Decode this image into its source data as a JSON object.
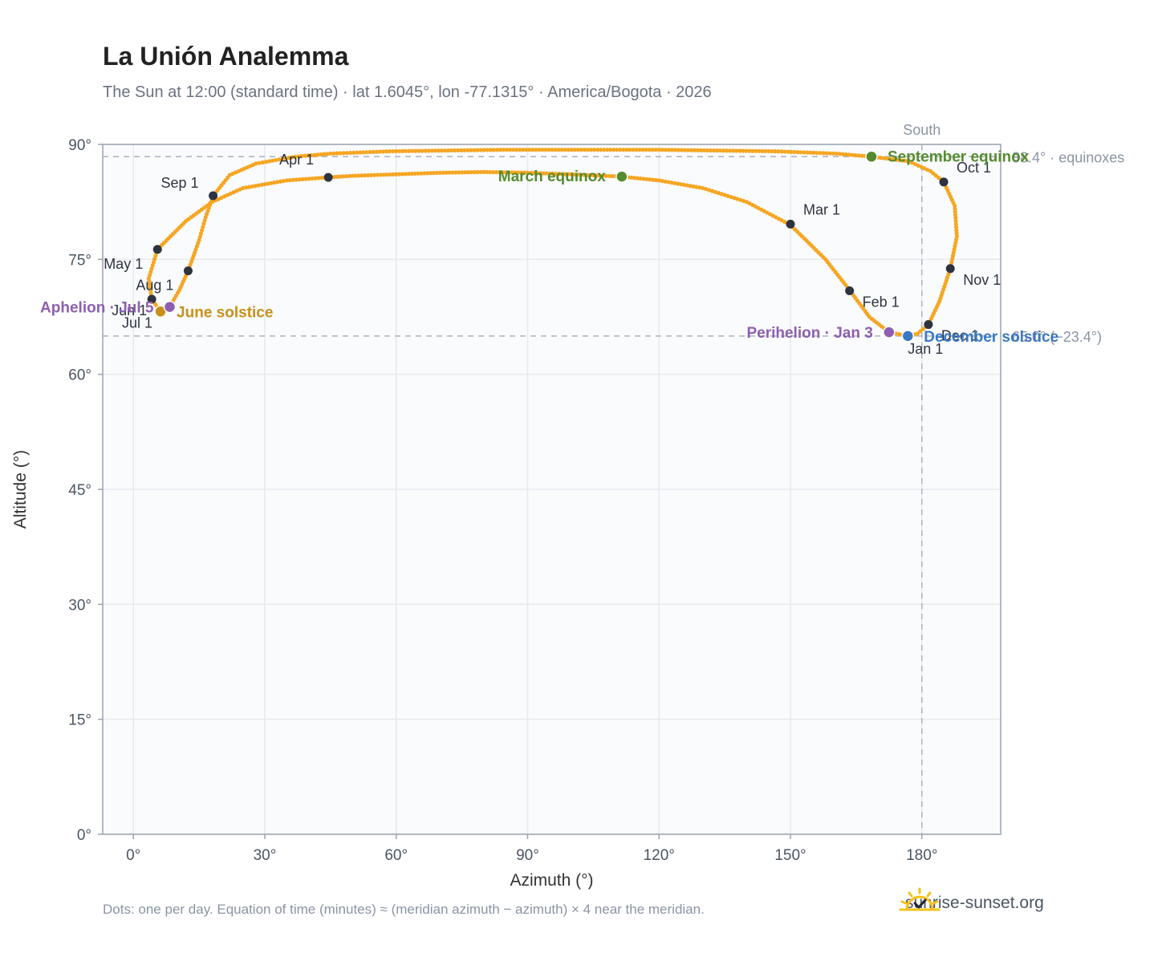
{
  "title": "La Unión Analemma",
  "subtitle": "The Sun at 12:00 (standard time) · lat 1.6045°, lon -77.1315° · America/Bogota · 2026",
  "footnote": "Dots: one per day. Equation of time (minutes) ≈ (meridian azimuth − azimuth) × 4 near the meridian.",
  "brand": {
    "name": "sunrise-sunset.org",
    "icon": "sun-check-icon"
  },
  "colors": {
    "path": "#f5a623",
    "month_marker": "#2d3440",
    "equinox": "#558b2f",
    "june_solstice": "#c8901a",
    "december_solstice": "#3a78c2",
    "perihelion_aphelion": "#8e5fb0",
    "reference_line": "#aab2bd",
    "grid": "#e6e9ee",
    "plot_bg": "#fafbfd"
  },
  "chart_data": {
    "type": "scatter",
    "xlabel": "Azimuth (°)",
    "ylabel": "Altitude (°)",
    "xlim": [
      -7,
      198
    ],
    "ylim": [
      0,
      90
    ],
    "x_ticks": [
      0,
      30,
      60,
      90,
      120,
      150,
      180
    ],
    "x_tick_labels": [
      "0°",
      "30°",
      "60°",
      "90°",
      "120°",
      "150°",
      "180°"
    ],
    "y_ticks": [
      0,
      15,
      30,
      45,
      60,
      75,
      90
    ],
    "y_tick_labels": [
      "0°",
      "15°",
      "30°",
      "45°",
      "60°",
      "75°",
      "90°"
    ],
    "grid": true,
    "reference_lines": {
      "meridian": {
        "azimuth": 180,
        "label": "South"
      },
      "equinox_altitude": {
        "altitude": 88.4,
        "label": "88.4° · equinoxes"
      },
      "solstice_altitude": {
        "altitude": 65.0,
        "label": "65.0° (−23.4°)"
      }
    },
    "path_points": [
      [
        177.0,
        65.0
      ],
      [
        172.5,
        65.5
      ],
      [
        168.0,
        67.5
      ],
      [
        163.5,
        71.0
      ],
      [
        158.0,
        75.0
      ],
      [
        150.0,
        79.5
      ],
      [
        140.0,
        82.5
      ],
      [
        130.0,
        84.3
      ],
      [
        120.0,
        85.3
      ],
      [
        111.5,
        85.8
      ],
      [
        100.0,
        86.1
      ],
      [
        90.0,
        86.3
      ],
      [
        80.0,
        86.4
      ],
      [
        70.0,
        86.3
      ],
      [
        60.0,
        86.1
      ],
      [
        50.0,
        85.9
      ],
      [
        44.5,
        85.7
      ],
      [
        35.0,
        85.3
      ],
      [
        25.0,
        84.3
      ],
      [
        18.0,
        82.5
      ],
      [
        12.0,
        80.0
      ],
      [
        5.5,
        76.3
      ],
      [
        3.5,
        72.5
      ],
      [
        4.2,
        69.8
      ],
      [
        6.2,
        68.2
      ],
      [
        8.3,
        68.8
      ],
      [
        10.5,
        71.0
      ],
      [
        12.5,
        73.5
      ],
      [
        15.0,
        77.5
      ],
      [
        16.5,
        80.5
      ],
      [
        18.2,
        83.3
      ],
      [
        22.0,
        86.0
      ],
      [
        28.0,
        87.5
      ],
      [
        37.0,
        88.4
      ],
      [
        45.0,
        88.8
      ],
      [
        58.5,
        89.1
      ],
      [
        84.5,
        89.3
      ],
      [
        120.0,
        89.3
      ],
      [
        146.5,
        89.1
      ],
      [
        160.5,
        88.8
      ],
      [
        168.5,
        88.4
      ],
      [
        177.0,
        87.8
      ],
      [
        182.0,
        86.5
      ],
      [
        185.0,
        85.1
      ],
      [
        187.5,
        82.0
      ],
      [
        188.0,
        78.0
      ],
      [
        186.5,
        73.8
      ],
      [
        184.0,
        69.5
      ],
      [
        181.5,
        66.5
      ],
      [
        179.0,
        65.3
      ],
      [
        177.0,
        65.0
      ]
    ],
    "month_markers": [
      {
        "label": "Jan 1",
        "x": 176.8,
        "y": 65.0
      },
      {
        "label": "Feb 1",
        "x": 163.5,
        "y": 70.9
      },
      {
        "label": "Mar 1",
        "x": 150.0,
        "y": 79.6
      },
      {
        "label": "Apr 1",
        "x": 44.5,
        "y": 85.7
      },
      {
        "label": "May 1",
        "x": 5.5,
        "y": 76.3
      },
      {
        "label": "Jun 1",
        "x": 4.2,
        "y": 69.8
      },
      {
        "label": "Jul 1",
        "x": 6.2,
        "y": 68.2
      },
      {
        "label": "Aug 1",
        "x": 12.5,
        "y": 73.5
      },
      {
        "label": "Sep 1",
        "x": 18.2,
        "y": 83.3
      },
      {
        "label": "Oct 1",
        "x": 185.0,
        "y": 85.1
      },
      {
        "label": "Nov 1",
        "x": 186.5,
        "y": 73.8
      },
      {
        "label": "Dec 1",
        "x": 181.5,
        "y": 66.5
      }
    ],
    "events": [
      {
        "label": "March equinox",
        "x": 111.5,
        "y": 85.8,
        "color": "#558b2f"
      },
      {
        "label": "September equinox",
        "x": 168.5,
        "y": 88.4,
        "color": "#558b2f"
      },
      {
        "label": "June solstice",
        "x": 6.2,
        "y": 68.2,
        "color": "#c8901a"
      },
      {
        "label": "December solstice",
        "x": 176.8,
        "y": 65.0,
        "color": "#3a78c2"
      },
      {
        "label": "Perihelion · Jan 3",
        "x": 172.5,
        "y": 65.5,
        "color": "#8e5fb0"
      },
      {
        "label": "Aphelion · Jul 5",
        "x": 8.3,
        "y": 68.8,
        "color": "#8e5fb0"
      }
    ]
  }
}
